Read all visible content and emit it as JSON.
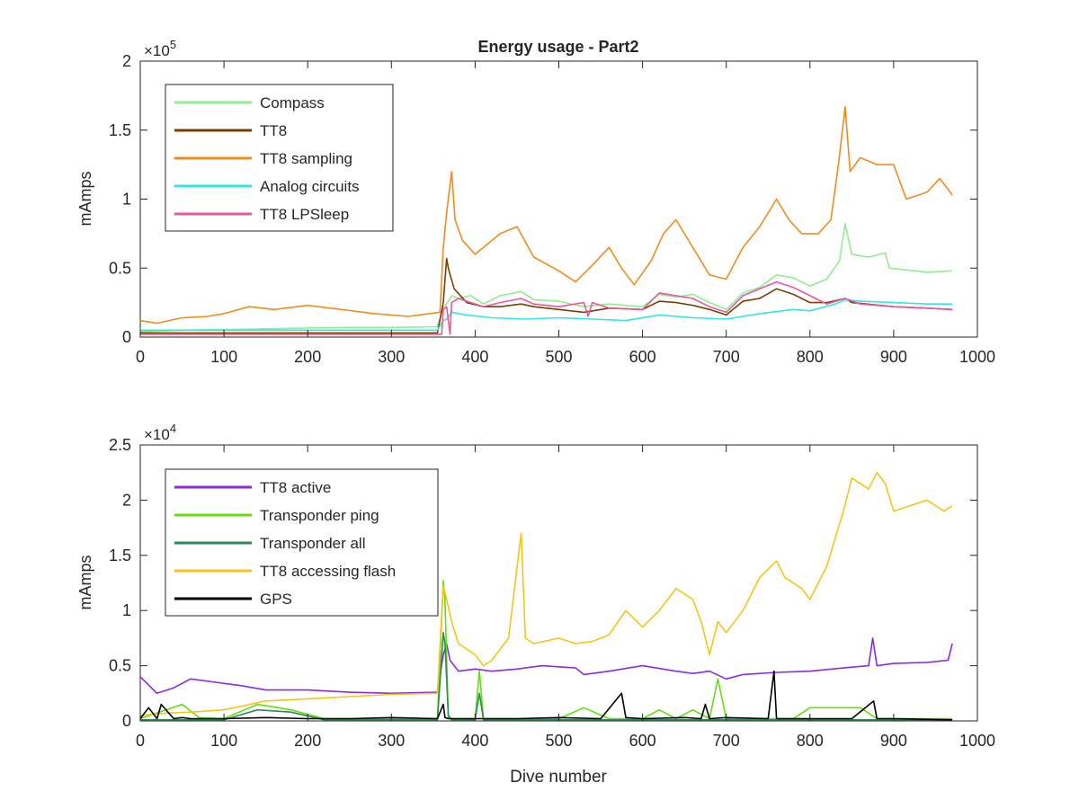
{
  "figure": {
    "background": "#ffffff",
    "axes_color": "#262626"
  },
  "chart_data": [
    {
      "type": "line",
      "title": "Energy usage - Part2",
      "xlabel": "",
      "ylabel": "mAmps",
      "y_exponent_label": "×10",
      "y_exponent": "5",
      "xlim": [
        0,
        1000
      ],
      "ylim": [
        0,
        200000
      ],
      "xticks": [
        0,
        100,
        200,
        300,
        400,
        500,
        600,
        700,
        800,
        900,
        1000
      ],
      "xtick_labels": [
        "0",
        "100",
        "200",
        "300",
        "400",
        "500",
        "600",
        "700",
        "800",
        "900",
        "1000"
      ],
      "yticks": [
        0,
        50000,
        100000,
        150000,
        200000
      ],
      "ytick_labels": [
        "0",
        "0.5",
        "1",
        "1.5",
        "2"
      ],
      "grid": false,
      "legend": "top-left",
      "series": [
        {
          "name": "Compass",
          "color": "#90ee90",
          "x": [
            0,
            50,
            100,
            150,
            200,
            250,
            300,
            355,
            362,
            366,
            372,
            380,
            395,
            410,
            430,
            455,
            470,
            500,
            530,
            560,
            600,
            620,
            640,
            660,
            680,
            700,
            720,
            740,
            760,
            780,
            800,
            820,
            835,
            842,
            850,
            870,
            890,
            895,
            910,
            940,
            970
          ],
          "y": [
            4000,
            5000,
            5500,
            6000,
            6500,
            7000,
            7000,
            7500,
            22000,
            24000,
            30000,
            28000,
            30000,
            24000,
            30000,
            33000,
            27000,
            26000,
            22000,
            24000,
            22000,
            31000,
            29000,
            31000,
            25000,
            20000,
            32000,
            36000,
            45000,
            43000,
            37000,
            42000,
            55000,
            82000,
            60000,
            58000,
            61000,
            50000,
            49000,
            47000,
            48000
          ]
        },
        {
          "name": "TT8",
          "color": "#7b3f00",
          "x": [
            0,
            50,
            100,
            150,
            200,
            250,
            300,
            355,
            362,
            366,
            368,
            375,
            390,
            410,
            430,
            455,
            470,
            500,
            530,
            560,
            600,
            620,
            640,
            660,
            680,
            700,
            720,
            740,
            760,
            780,
            800,
            820,
            842,
            850,
            900,
            940,
            970
          ],
          "y": [
            3000,
            3000,
            3000,
            3000,
            3000,
            3000,
            3000,
            3000,
            25000,
            57000,
            50000,
            35000,
            25000,
            22000,
            22000,
            24000,
            22000,
            20000,
            18000,
            21000,
            20000,
            26000,
            25000,
            23000,
            20000,
            16000,
            26000,
            28000,
            35000,
            31000,
            25000,
            25000,
            28000,
            25000,
            22000,
            21000,
            20000
          ]
        },
        {
          "name": "TT8 sampling",
          "color": "#f08c1e",
          "x": [
            0,
            20,
            50,
            80,
            100,
            130,
            160,
            200,
            240,
            280,
            320,
            358,
            362,
            366,
            372,
            376,
            385,
            400,
            430,
            450,
            470,
            500,
            520,
            540,
            560,
            575,
            590,
            610,
            625,
            640,
            660,
            680,
            700,
            720,
            740,
            760,
            775,
            790,
            810,
            825,
            835,
            842,
            848,
            860,
            880,
            900,
            915,
            940,
            955,
            970
          ],
          "y": [
            12000,
            10000,
            14000,
            15000,
            17000,
            22000,
            20000,
            23000,
            20000,
            17000,
            15000,
            18000,
            65000,
            90000,
            120000,
            85000,
            70000,
            60000,
            75000,
            80000,
            58000,
            48000,
            40000,
            52000,
            65000,
            50000,
            38000,
            55000,
            75000,
            85000,
            65000,
            45000,
            42000,
            65000,
            80000,
            100000,
            85000,
            75000,
            75000,
            85000,
            130000,
            167000,
            120000,
            130000,
            125000,
            125000,
            100000,
            105000,
            115000,
            103000
          ]
        },
        {
          "name": "Analog circuits",
          "color": "#33e6e6",
          "x": [
            0,
            100,
            200,
            300,
            355,
            362,
            366,
            372,
            390,
            420,
            460,
            500,
            540,
            580,
            620,
            660,
            700,
            740,
            780,
            800,
            830,
            842,
            860,
            900,
            940,
            970
          ],
          "y": [
            5000,
            5000,
            5000,
            5000,
            5000,
            12000,
            13000,
            18000,
            16000,
            14000,
            13000,
            14000,
            13000,
            12000,
            16000,
            14000,
            13000,
            17000,
            20000,
            19000,
            24000,
            27000,
            26000,
            25000,
            24000,
            24000
          ]
        },
        {
          "name": "TT8 LPSleep",
          "color": "#e8589e",
          "x": [
            0,
            100,
            200,
            300,
            360,
            362,
            366,
            370,
            372,
            380,
            410,
            430,
            455,
            470,
            500,
            530,
            535,
            540,
            560,
            600,
            620,
            640,
            660,
            680,
            700,
            720,
            740,
            760,
            780,
            800,
            820,
            842,
            860,
            900,
            940,
            970
          ],
          "y": [
            2000,
            2000,
            2000,
            2000,
            2000,
            20000,
            22000,
            2000,
            25000,
            28000,
            22000,
            25000,
            28000,
            24000,
            22000,
            25000,
            15000,
            25000,
            21000,
            20000,
            32000,
            30000,
            28000,
            22000,
            18000,
            30000,
            35000,
            40000,
            36000,
            30000,
            24000,
            28000,
            24000,
            22000,
            21000,
            20000
          ]
        }
      ]
    },
    {
      "type": "line",
      "title": "",
      "xlabel": "Dive number",
      "ylabel": "mAmps",
      "y_exponent_label": "×10",
      "y_exponent": "4",
      "xlim": [
        0,
        1000
      ],
      "ylim": [
        0,
        25000
      ],
      "xticks": [
        0,
        100,
        200,
        300,
        400,
        500,
        600,
        700,
        800,
        900,
        1000
      ],
      "xtick_labels": [
        "0",
        "100",
        "200",
        "300",
        "400",
        "500",
        "600",
        "700",
        "800",
        "900",
        "1000"
      ],
      "yticks": [
        0,
        5000,
        10000,
        15000,
        20000,
        25000
      ],
      "ytick_labels": [
        "0",
        "0.5",
        "1",
        "1.5",
        "2",
        "2.5"
      ],
      "grid": false,
      "legend": "top-left",
      "series": [
        {
          "name": "TT8 active",
          "color": "#8a2be2",
          "x": [
            0,
            20,
            40,
            60,
            90,
            120,
            150,
            200,
            250,
            300,
            355,
            362,
            366,
            370,
            380,
            400,
            420,
            450,
            480,
            520,
            530,
            560,
            600,
            640,
            660,
            680,
            700,
            720,
            760,
            800,
            840,
            870,
            875,
            880,
            900,
            940,
            965,
            970
          ],
          "y": [
            4000,
            2500,
            3000,
            3800,
            3500,
            3200,
            2800,
            2800,
            2600,
            2500,
            2600,
            6000,
            7000,
            5500,
            4500,
            4700,
            4500,
            4700,
            5000,
            4800,
            4200,
            4500,
            5000,
            4500,
            4300,
            4500,
            3800,
            4200,
            4400,
            4500,
            4800,
            5000,
            7500,
            5000,
            5200,
            5300,
            5500,
            7000
          ]
        },
        {
          "name": "Transponder ping",
          "color": "#66dd11",
          "x": [
            0,
            50,
            70,
            100,
            140,
            180,
            220,
            250,
            300,
            355,
            362,
            364,
            368,
            372,
            400,
            405,
            410,
            420,
            500,
            530,
            560,
            600,
            620,
            640,
            660,
            680,
            690,
            700,
            750,
            780,
            800,
            830,
            860,
            880,
            900,
            970
          ],
          "y": [
            200,
            1500,
            300,
            200,
            1500,
            1000,
            200,
            200,
            200,
            200,
            12700,
            11000,
            200,
            200,
            200,
            4500,
            200,
            200,
            200,
            1200,
            200,
            200,
            1000,
            200,
            1000,
            200,
            3800,
            200,
            200,
            200,
            1200,
            1200,
            1200,
            200,
            200,
            200
          ]
        },
        {
          "name": "Transponder all",
          "color": "#2e8b57",
          "x": [
            0,
            100,
            140,
            180,
            220,
            250,
            300,
            355,
            362,
            364,
            368,
            372,
            400,
            405,
            410,
            420,
            500,
            600,
            700,
            800,
            900,
            970
          ],
          "y": [
            100,
            100,
            1000,
            800,
            100,
            100,
            100,
            100,
            8000,
            7000,
            500,
            100,
            100,
            2500,
            100,
            100,
            100,
            100,
            100,
            100,
            100,
            100
          ]
        },
        {
          "name": "TT8 accessing flash",
          "color": "#f5c518",
          "x": [
            0,
            30,
            60,
            100,
            150,
            200,
            250,
            300,
            355,
            362,
            366,
            372,
            380,
            400,
            410,
            420,
            440,
            455,
            460,
            470,
            500,
            520,
            540,
            560,
            580,
            600,
            620,
            640,
            660,
            670,
            680,
            690,
            700,
            720,
            740,
            760,
            770,
            790,
            800,
            820,
            840,
            850,
            870,
            880,
            890,
            900,
            920,
            940,
            960,
            970
          ],
          "y": [
            500,
            700,
            800,
            1000,
            1800,
            2000,
            2200,
            2400,
            2500,
            12200,
            11000,
            9000,
            7000,
            6000,
            5000,
            5500,
            7500,
            17000,
            7500,
            7000,
            7500,
            7000,
            7200,
            7800,
            10000,
            8500,
            10000,
            12000,
            11000,
            9000,
            6000,
            9000,
            8000,
            10000,
            13000,
            14500,
            13000,
            12000,
            11000,
            14000,
            19000,
            22000,
            21000,
            22500,
            21500,
            19000,
            19500,
            20000,
            19000,
            19500
          ]
        },
        {
          "name": "GPS",
          "color": "#000000",
          "x": [
            0,
            10,
            20,
            25,
            40,
            50,
            60,
            100,
            150,
            200,
            250,
            300,
            355,
            362,
            364,
            368,
            380,
            400,
            450,
            500,
            550,
            575,
            580,
            600,
            650,
            670,
            675,
            680,
            700,
            750,
            757,
            760,
            800,
            850,
            876,
            880,
            900,
            970
          ],
          "y": [
            200,
            1200,
            200,
            1500,
            200,
            300,
            200,
            200,
            300,
            200,
            200,
            300,
            200,
            1500,
            300,
            200,
            200,
            200,
            200,
            300,
            200,
            2500,
            300,
            200,
            300,
            200,
            1500,
            200,
            300,
            200,
            4500,
            200,
            200,
            200,
            1800,
            200,
            200,
            100
          ]
        }
      ]
    }
  ]
}
